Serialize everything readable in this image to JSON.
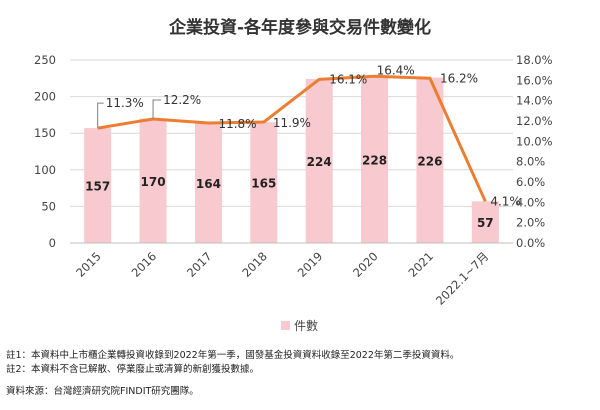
{
  "chart_data": {
    "type": "bar+line",
    "title": "企業投資-各年度參與交易件數變化",
    "categories": [
      "2015",
      "2016",
      "2017",
      "2018",
      "2019",
      "2020",
      "2021",
      "2022.1~7月"
    ],
    "bar_series": {
      "name": "件數",
      "values": [
        157,
        170,
        164,
        165,
        224,
        228,
        226,
        57
      ],
      "color": "#f8c9ce"
    },
    "line_series": {
      "values": [
        11.3,
        12.2,
        11.8,
        11.9,
        16.1,
        16.4,
        16.2,
        4.1
      ],
      "labels": [
        "11.3%",
        "12.2%",
        "11.8%",
        "11.9%",
        "16.1%",
        "16.4%",
        "16.2%",
        "4.1%"
      ],
      "color": "#ed7d31"
    },
    "y_left": {
      "min": 0,
      "max": 250,
      "ticks": [
        "0",
        "50",
        "100",
        "150",
        "200",
        "250"
      ]
    },
    "y_right": {
      "min": 0,
      "max": 18,
      "ticks": [
        "0.0%",
        "2.0%",
        "4.0%",
        "6.0%",
        "8.0%",
        "10.0%",
        "12.0%",
        "14.0%",
        "16.0%",
        "18.0%"
      ]
    },
    "grid": true,
    "legend_position": "bottom"
  },
  "notes": {
    "note1": "註1：本資料中上市櫃企業轉投資收錄到2022年第一季，國發基金投資資料收錄至2022年第二季投資資料。",
    "note2": "註2：本資料不含已解散、停業廢止或清算的新創獲投數據。",
    "source": "資料來源：台灣經濟研究院FINDIT研究團隊。"
  }
}
